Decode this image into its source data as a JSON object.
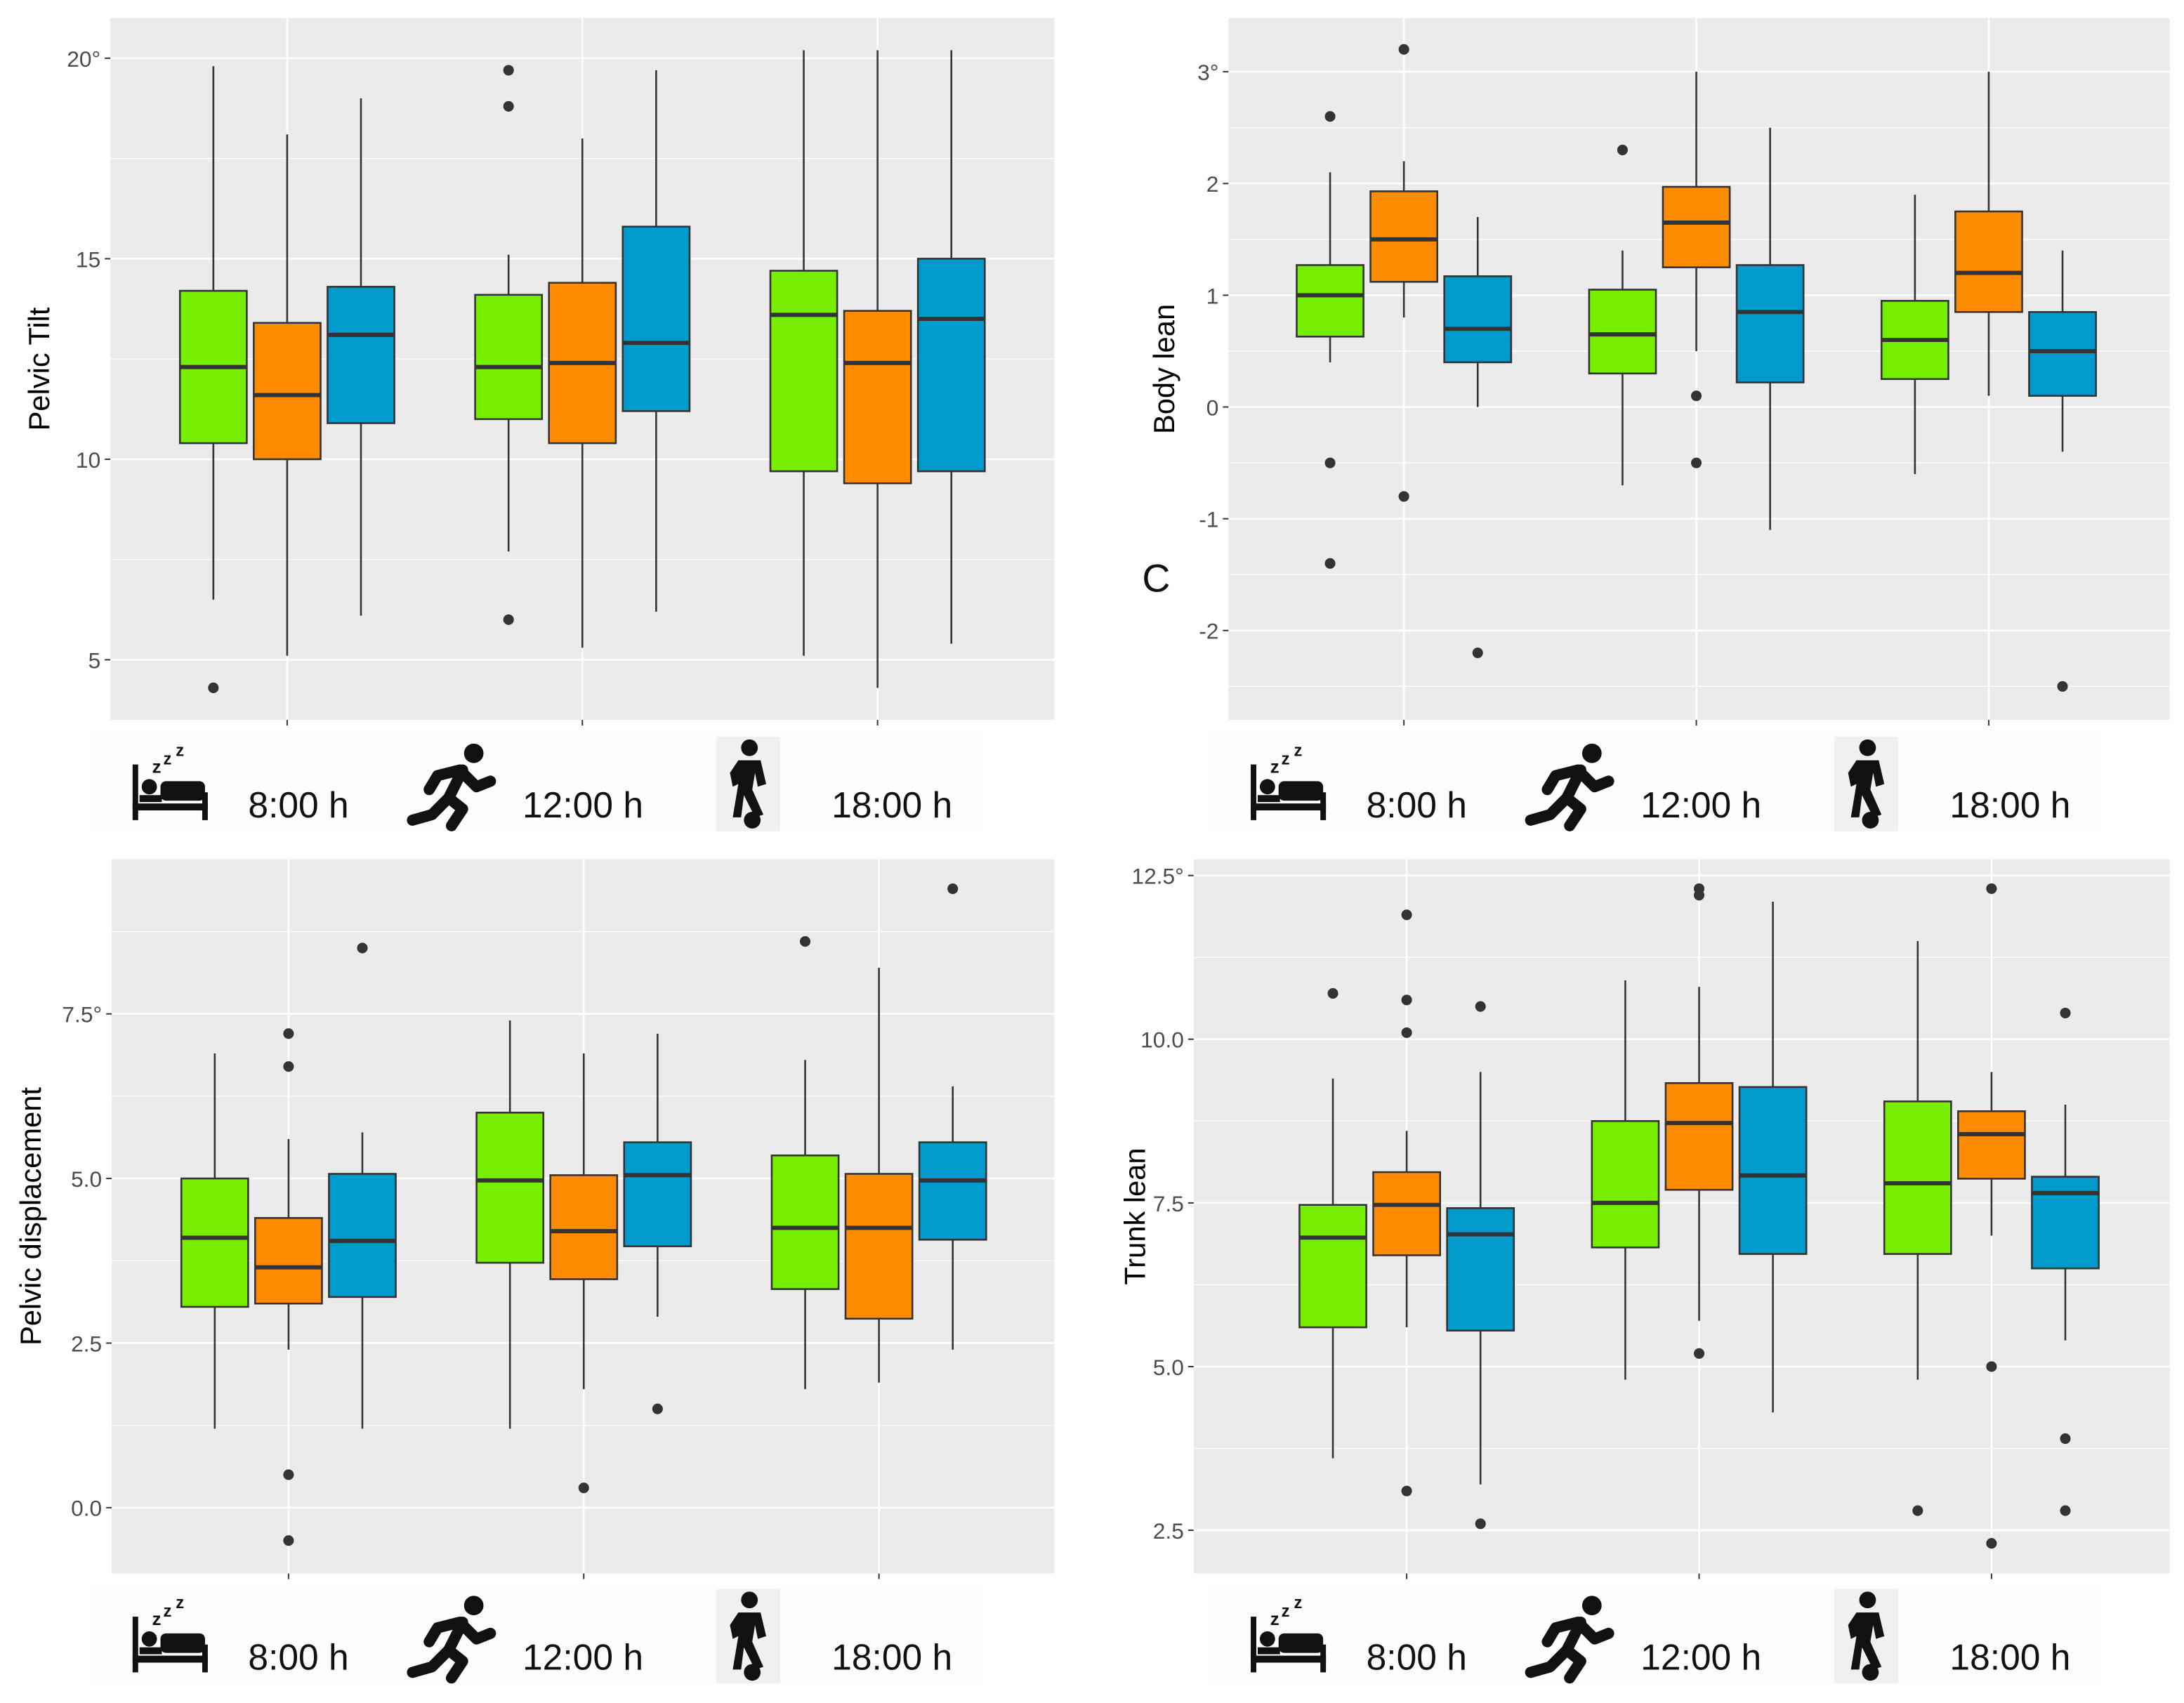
{
  "colors": {
    "green": "#76EE00",
    "orange": "#FF8C00",
    "blue": "#009ACD",
    "panel_bg": "#EBEBEB",
    "grid": "#FFFFFF",
    "stroke": "#333333"
  },
  "categories": [
    "8:00 h",
    "12:00 h",
    "18:00 h"
  ],
  "category_icons": [
    "bed-sleeping-icon",
    "running-person-icon",
    "soccer-player-icon"
  ],
  "series": [
    "green",
    "orange",
    "blue"
  ],
  "panel_letter": "C",
  "chart_data": [
    {
      "type": "boxplot",
      "ylabel": "Pelvic Tilt",
      "ylim": [
        3.5,
        21.0
      ],
      "yticks": [
        5,
        10,
        15,
        20
      ],
      "ytick_labels": [
        "5",
        "10",
        "15",
        "20°"
      ],
      "groups": [
        [
          {
            "low": 6.5,
            "q1": 10.4,
            "median": 12.3,
            "q3": 14.2,
            "high": 19.8,
            "outliers": [
              4.3
            ]
          },
          {
            "low": 5.1,
            "q1": 10.0,
            "median": 11.6,
            "q3": 13.4,
            "high": 18.1,
            "outliers": []
          },
          {
            "low": 6.1,
            "q1": 10.9,
            "median": 13.1,
            "q3": 14.3,
            "high": 19.0,
            "outliers": []
          }
        ],
        [
          {
            "low": 7.7,
            "q1": 11.0,
            "median": 12.3,
            "q3": 14.1,
            "high": 15.1,
            "outliers": [
              19.7,
              18.8,
              6.0
            ]
          },
          {
            "low": 5.3,
            "q1": 10.4,
            "median": 12.4,
            "q3": 14.4,
            "high": 18.0,
            "outliers": []
          },
          {
            "low": 6.2,
            "q1": 11.2,
            "median": 12.9,
            "q3": 15.8,
            "high": 19.7,
            "outliers": []
          }
        ],
        [
          {
            "low": 5.1,
            "q1": 9.7,
            "median": 13.6,
            "q3": 14.7,
            "high": 20.2,
            "outliers": []
          },
          {
            "low": 4.3,
            "q1": 9.4,
            "median": 12.4,
            "q3": 13.7,
            "high": 20.2,
            "outliers": []
          },
          {
            "low": 5.4,
            "q1": 9.7,
            "median": 13.5,
            "q3": 15.0,
            "high": 20.2,
            "outliers": []
          }
        ]
      ]
    },
    {
      "type": "boxplot",
      "ylabel": "Body lean",
      "ylim": [
        -2.8,
        3.48
      ],
      "yticks": [
        -2,
        -1,
        0,
        1,
        2,
        3
      ],
      "ytick_labels": [
        "-2",
        "-1",
        "0",
        "1",
        "2",
        "3°"
      ],
      "groups": [
        [
          {
            "low": 0.4,
            "q1": 0.63,
            "median": 1.0,
            "q3": 1.27,
            "high": 2.1,
            "outliers": [
              2.6,
              -0.5,
              -1.4
            ]
          },
          {
            "low": 0.8,
            "q1": 1.12,
            "median": 1.5,
            "q3": 1.93,
            "high": 2.2,
            "outliers": [
              3.2,
              -0.8
            ]
          },
          {
            "low": 0.0,
            "q1": 0.4,
            "median": 0.7,
            "q3": 1.17,
            "high": 1.7,
            "outliers": [
              -2.2
            ]
          }
        ],
        [
          {
            "low": -0.7,
            "q1": 0.3,
            "median": 0.65,
            "q3": 1.05,
            "high": 1.4,
            "outliers": [
              2.3
            ]
          },
          {
            "low": 0.5,
            "q1": 1.25,
            "median": 1.65,
            "q3": 1.97,
            "high": 3.0,
            "outliers": [
              0.1,
              -0.5
            ]
          },
          {
            "low": -1.1,
            "q1": 0.22,
            "median": 0.85,
            "q3": 1.27,
            "high": 2.5,
            "outliers": []
          }
        ],
        [
          {
            "low": -0.6,
            "q1": 0.25,
            "median": 0.6,
            "q3": 0.95,
            "high": 1.9,
            "outliers": []
          },
          {
            "low": 0.1,
            "q1": 0.85,
            "median": 1.2,
            "q3": 1.75,
            "high": 3.0,
            "outliers": []
          },
          {
            "low": -0.4,
            "q1": 0.1,
            "median": 0.5,
            "q3": 0.85,
            "high": 1.4,
            "outliers": [
              -2.5
            ]
          }
        ]
      ]
    },
    {
      "type": "boxplot",
      "ylabel": "Pelvic displacement",
      "ylim": [
        -1.0,
        9.85
      ],
      "yticks": [
        0,
        2.5,
        5,
        7.5
      ],
      "ytick_labels": [
        "0.0",
        "2.5",
        "5.0",
        "7.5°"
      ],
      "groups": [
        [
          {
            "low": 1.2,
            "q1": 3.05,
            "median": 4.1,
            "q3": 5.0,
            "high": 6.9,
            "outliers": []
          },
          {
            "low": 2.4,
            "q1": 3.1,
            "median": 3.65,
            "q3": 4.4,
            "high": 5.6,
            "outliers": [
              7.2,
              6.7,
              0.5,
              -0.5
            ]
          },
          {
            "low": 1.2,
            "q1": 3.2,
            "median": 4.05,
            "q3": 5.07,
            "high": 5.7,
            "outliers": [
              8.5
            ]
          }
        ],
        [
          {
            "low": 1.2,
            "q1": 3.72,
            "median": 4.97,
            "q3": 6.0,
            "high": 7.4,
            "outliers": []
          },
          {
            "low": 1.8,
            "q1": 3.47,
            "median": 4.2,
            "q3": 5.05,
            "high": 6.9,
            "outliers": [
              0.3
            ]
          },
          {
            "low": 2.9,
            "q1": 3.97,
            "median": 5.05,
            "q3": 5.55,
            "high": 7.2,
            "outliers": [
              1.5
            ]
          }
        ],
        [
          {
            "low": 1.8,
            "q1": 3.32,
            "median": 4.25,
            "q3": 5.35,
            "high": 6.8,
            "outliers": [
              8.6
            ]
          },
          {
            "low": 1.9,
            "q1": 2.87,
            "median": 4.25,
            "q3": 5.07,
            "high": 8.2,
            "outliers": []
          },
          {
            "low": 2.4,
            "q1": 4.07,
            "median": 4.97,
            "q3": 5.55,
            "high": 6.4,
            "outliers": [
              9.4
            ]
          }
        ]
      ]
    },
    {
      "type": "boxplot",
      "ylabel": "Trunk lean",
      "ylim": [
        1.84,
        12.75
      ],
      "yticks": [
        2.5,
        5,
        7.5,
        10,
        12.5
      ],
      "ytick_labels": [
        "2.5",
        "5.0",
        "7.5",
        "10.0",
        "12.5°"
      ],
      "groups": [
        [
          {
            "low": 3.6,
            "q1": 5.6,
            "median": 6.97,
            "q3": 7.47,
            "high": 9.4,
            "outliers": [
              10.7
            ]
          },
          {
            "low": 5.6,
            "q1": 6.7,
            "median": 7.47,
            "q3": 7.97,
            "high": 8.6,
            "outliers": [
              11.9,
              10.6,
              10.1,
              3.1
            ]
          },
          {
            "low": 3.2,
            "q1": 5.55,
            "median": 7.02,
            "q3": 7.42,
            "high": 9.5,
            "outliers": [
              10.5,
              2.6
            ]
          }
        ],
        [
          {
            "low": 4.8,
            "q1": 6.82,
            "median": 7.5,
            "q3": 8.75,
            "high": 10.9,
            "outliers": []
          },
          {
            "low": 5.7,
            "q1": 7.7,
            "median": 8.72,
            "q3": 9.33,
            "high": 10.8,
            "outliers": [
              12.3,
              12.2,
              5.2
            ]
          },
          {
            "low": 4.3,
            "q1": 6.72,
            "median": 7.92,
            "q3": 9.27,
            "high": 12.1,
            "outliers": []
          }
        ],
        [
          {
            "low": 4.8,
            "q1": 6.72,
            "median": 7.8,
            "q3": 9.05,
            "high": 11.5,
            "outliers": [
              2.8
            ]
          },
          {
            "low": 7.0,
            "q1": 7.87,
            "median": 8.55,
            "q3": 8.9,
            "high": 9.5,
            "outliers": [
              12.3,
              5.0,
              2.3
            ]
          },
          {
            "low": 5.4,
            "q1": 6.5,
            "median": 7.65,
            "q3": 7.9,
            "high": 9.0,
            "outliers": [
              10.4,
              3.9,
              2.8
            ]
          }
        ]
      ]
    }
  ]
}
